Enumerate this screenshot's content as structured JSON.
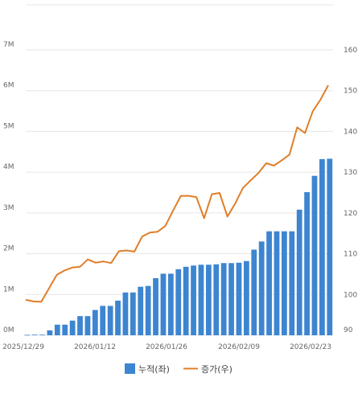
{
  "chart_data": {
    "type": "bar+line",
    "grid": true,
    "legend_position": "bottom-center",
    "x_tick_labels": [
      "2025/12/29",
      "2026/01/12",
      "2026/01/26",
      "2026/02/09",
      "2026/02/23"
    ],
    "left_axis": {
      "ticks": [
        "0M",
        "1M",
        "2M",
        "3M",
        "4M",
        "5M",
        "6M",
        "7M"
      ],
      "ylim": [
        0,
        7000000
      ]
    },
    "right_axis": {
      "ticks": [
        "90",
        "100",
        "110",
        "120",
        "130",
        "140",
        "150",
        "160"
      ],
      "ylim": [
        90,
        160
      ]
    },
    "series": [
      {
        "name": "누적(좌)",
        "type": "bar",
        "axis": "left",
        "color": "#3d85d0",
        "values": [
          10000,
          15000,
          15000,
          120000,
          260000,
          260000,
          360000,
          470000,
          470000,
          620000,
          720000,
          720000,
          850000,
          1050000,
          1050000,
          1190000,
          1210000,
          1400000,
          1510000,
          1510000,
          1620000,
          1680000,
          1710000,
          1730000,
          1730000,
          1740000,
          1770000,
          1770000,
          1780000,
          1820000,
          2100000,
          2300000,
          2550000,
          2550000,
          2550000,
          2550000,
          3080000,
          3510000,
          3910000,
          4320000,
          4330000
        ]
      },
      {
        "name": "증가(우)",
        "type": "line",
        "axis": "right",
        "color": "#e07e28",
        "values": [
          98.7,
          98.3,
          98.2,
          101.5,
          104.8,
          105.9,
          106.6,
          106.8,
          108.6,
          107.8,
          108.1,
          107.7,
          110.6,
          110.8,
          110.5,
          114.2,
          115.2,
          115.4,
          116.8,
          120.6,
          124.2,
          124.2,
          123.9,
          118.7,
          124.6,
          124.9,
          119.1,
          122.3,
          126.1,
          128.0,
          129.8,
          132.2,
          131.6,
          132.9,
          134.3,
          141.0,
          139.6,
          144.9,
          147.8,
          151.3
        ]
      }
    ]
  }
}
